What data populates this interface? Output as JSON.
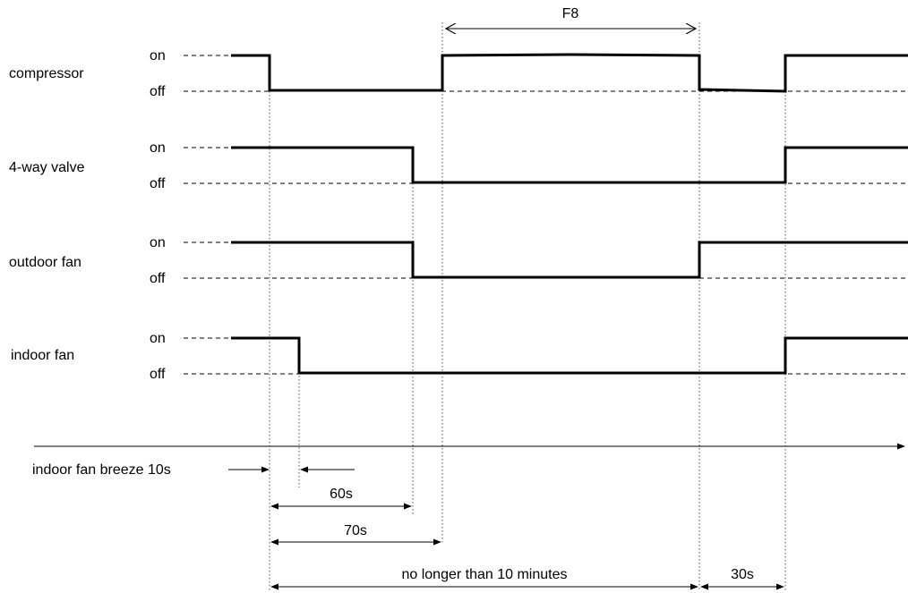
{
  "levels": {
    "on": "on",
    "off": "off"
  },
  "signals": [
    {
      "name": "compressor"
    },
    {
      "name": "4-way valve"
    },
    {
      "name": "outdoor fan"
    },
    {
      "name": "indoor fan"
    }
  ],
  "intervals": {
    "f8": "F8",
    "breeze": "indoor fan breeze 10s",
    "t60": "60s",
    "t70": "70s",
    "t10min": "no longer than 10 minutes",
    "t30": "30s"
  }
}
